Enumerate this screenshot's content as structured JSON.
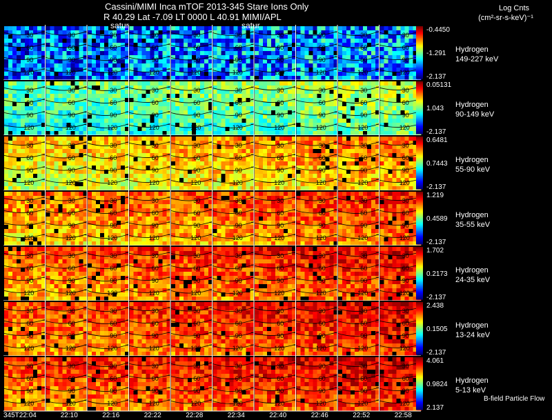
{
  "header": {
    "title": "Cassini/MIMI Inca mTOF  2013-345    Stare    Ions Only",
    "subtitle": "R         40.29 Lat -7.09 LT 0000 L          40.91   MIMI/APL",
    "saturn_label": "satur"
  },
  "legend": {
    "title": "Log Cnts",
    "unit": "(cm²-sr-s-keV)⁻¹"
  },
  "footer_note": "B-field Particle Flow",
  "chart_data": {
    "type": "heatmap",
    "time_labels": [
      "345T22:04",
      "22:10",
      "22:16",
      "22:22",
      "22:28",
      "22:34",
      "22:40",
      "22:46",
      "22:52",
      "22:58"
    ],
    "contour_labels": [
      "30",
      "60",
      "90",
      "120"
    ],
    "rows": [
      {
        "species": "Hydrogen",
        "energy": "149-227 keV",
        "cb_max": "-0.4450",
        "cb_mid": "-1.291",
        "cb_min": "-2.137",
        "level": 0.22
      },
      {
        "species": "Hydrogen",
        "energy": "90-149 keV",
        "cb_max": "0.05131",
        "cb_mid": "1.043",
        "cb_min": "-2.137",
        "level": 0.48
      },
      {
        "species": "Hydrogen",
        "energy": "55-90 keV",
        "cb_max": "0.6481",
        "cb_mid": "0.7443",
        "cb_min": "-2.137",
        "level": 0.68
      },
      {
        "species": "Hydrogen",
        "energy": "35-55 keV",
        "cb_max": "1.219",
        "cb_mid": "0.4589",
        "cb_min": "-2.137",
        "level": 0.76
      },
      {
        "species": "Hydrogen",
        "energy": "24-35 keV",
        "cb_max": "1.702",
        "cb_mid": "0.2173",
        "cb_min": "-2.137",
        "level": 0.8
      },
      {
        "species": "Hydrogen",
        "energy": "13-24 keV",
        "cb_max": "2.438",
        "cb_mid": "0.1505",
        "cb_min": "-2.137",
        "level": 0.82
      },
      {
        "species": "Hydrogen",
        "energy": "5-13 keV",
        "cb_max": "4.061",
        "cb_mid": "0.9824",
        "cb_min": "2.137",
        "level": 0.83
      }
    ]
  }
}
